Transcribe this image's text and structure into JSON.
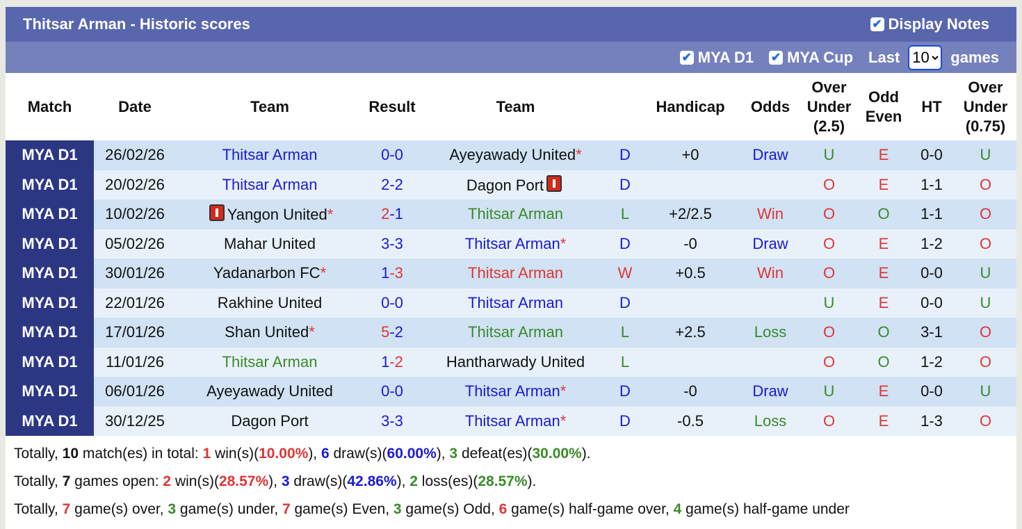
{
  "title": "Thitsar Arman - Historic scores",
  "display_notes": {
    "label": "Display Notes",
    "checked": true
  },
  "filters": [
    {
      "label": "MYA D1",
      "checked": true
    },
    {
      "label": "MYA Cup",
      "checked": true
    }
  ],
  "last_label": "Last",
  "last_value": "10",
  "games_label": "games",
  "headers": [
    "Match",
    "Date",
    "Team",
    "Result",
    "Team",
    "",
    "Handicap",
    "Odds",
    "Over Under (2.5)",
    "Odd Even",
    "HT",
    "Over Under (0.75)"
  ],
  "colors": {
    "blue": "#1a1ad6",
    "red": "#e03535",
    "green": "#3a8a2a",
    "match_bg": "#2c3784",
    "title_bg": "#5866ad"
  },
  "rows": [
    {
      "match": "MYA D1",
      "date": "26/02/26",
      "home": "Thitsar Arman",
      "home_color": "blue",
      "home_star": false,
      "home_card": false,
      "score_home": "0",
      "score_away": "0",
      "sh_color": "blue",
      "sa_color": "blue",
      "away": "Ayeyawady United",
      "away_color": "black",
      "away_star": true,
      "away_card": false,
      "wdl": "D",
      "wdl_color": "blue",
      "handicap": "+0",
      "odds": "Draw",
      "odds_color": "blue",
      "ou": "U",
      "ou_color": "green",
      "oe": "E",
      "oe_color": "red",
      "ht": "0-0",
      "ou2": "U",
      "ou2_color": "green"
    },
    {
      "match": "MYA D1",
      "date": "20/02/26",
      "home": "Thitsar Arman",
      "home_color": "blue",
      "home_star": false,
      "home_card": false,
      "score_home": "2",
      "score_away": "2",
      "sh_color": "blue",
      "sa_color": "blue",
      "away": "Dagon Port",
      "away_color": "black",
      "away_star": false,
      "away_card": true,
      "wdl": "D",
      "wdl_color": "blue",
      "handicap": "",
      "odds": "",
      "odds_color": "blue",
      "ou": "O",
      "ou_color": "red",
      "oe": "E",
      "oe_color": "red",
      "ht": "1-1",
      "ou2": "O",
      "ou2_color": "red"
    },
    {
      "match": "MYA D1",
      "date": "10/02/26",
      "home": "Yangon United",
      "home_color": "black",
      "home_star": true,
      "home_card": true,
      "score_home": "2",
      "score_away": "1",
      "sh_color": "red",
      "sa_color": "blue",
      "away": "Thitsar Arman",
      "away_color": "green",
      "away_star": false,
      "away_card": false,
      "wdl": "L",
      "wdl_color": "green",
      "handicap": "+2/2.5",
      "odds": "Win",
      "odds_color": "red",
      "ou": "O",
      "ou_color": "red",
      "oe": "O",
      "oe_color": "green",
      "ht": "1-1",
      "ou2": "O",
      "ou2_color": "red"
    },
    {
      "match": "MYA D1",
      "date": "05/02/26",
      "home": "Mahar United",
      "home_color": "black",
      "home_star": false,
      "home_card": false,
      "score_home": "3",
      "score_away": "3",
      "sh_color": "blue",
      "sa_color": "blue",
      "away": "Thitsar Arman",
      "away_color": "blue",
      "away_star": true,
      "away_card": false,
      "wdl": "D",
      "wdl_color": "blue",
      "handicap": "-0",
      "odds": "Draw",
      "odds_color": "blue",
      "ou": "O",
      "ou_color": "red",
      "oe": "E",
      "oe_color": "red",
      "ht": "1-2",
      "ou2": "O",
      "ou2_color": "red"
    },
    {
      "match": "MYA D1",
      "date": "30/01/26",
      "home": "Yadanarbon FC",
      "home_color": "black",
      "home_star": true,
      "home_card": false,
      "score_home": "1",
      "score_away": "3",
      "sh_color": "blue",
      "sa_color": "red",
      "away": "Thitsar Arman",
      "away_color": "red",
      "away_star": false,
      "away_card": false,
      "wdl": "W",
      "wdl_color": "red",
      "handicap": "+0.5",
      "odds": "Win",
      "odds_color": "red",
      "ou": "O",
      "ou_color": "red",
      "oe": "E",
      "oe_color": "red",
      "ht": "0-0",
      "ou2": "U",
      "ou2_color": "green"
    },
    {
      "match": "MYA D1",
      "date": "22/01/26",
      "home": "Rakhine United",
      "home_color": "black",
      "home_star": false,
      "home_card": false,
      "score_home": "0",
      "score_away": "0",
      "sh_color": "blue",
      "sa_color": "blue",
      "away": "Thitsar Arman",
      "away_color": "blue",
      "away_star": false,
      "away_card": false,
      "wdl": "D",
      "wdl_color": "blue",
      "handicap": "",
      "odds": "",
      "odds_color": "blue",
      "ou": "U",
      "ou_color": "green",
      "oe": "E",
      "oe_color": "red",
      "ht": "0-0",
      "ou2": "U",
      "ou2_color": "green"
    },
    {
      "match": "MYA D1",
      "date": "17/01/26",
      "home": "Shan United",
      "home_color": "black",
      "home_star": true,
      "home_card": false,
      "score_home": "5",
      "score_away": "2",
      "sh_color": "red",
      "sa_color": "blue",
      "away": "Thitsar Arman",
      "away_color": "green",
      "away_star": false,
      "away_card": false,
      "wdl": "L",
      "wdl_color": "green",
      "handicap": "+2.5",
      "odds": "Loss",
      "odds_color": "green",
      "ou": "O",
      "ou_color": "red",
      "oe": "O",
      "oe_color": "green",
      "ht": "3-1",
      "ou2": "O",
      "ou2_color": "red"
    },
    {
      "match": "MYA D1",
      "date": "11/01/26",
      "home": "Thitsar Arman",
      "home_color": "green",
      "home_star": false,
      "home_card": false,
      "score_home": "1",
      "score_away": "2",
      "sh_color": "blue",
      "sa_color": "red",
      "away": "Hantharwady United",
      "away_color": "black",
      "away_star": false,
      "away_card": false,
      "wdl": "L",
      "wdl_color": "green",
      "handicap": "",
      "odds": "",
      "odds_color": "blue",
      "ou": "O",
      "ou_color": "red",
      "oe": "O",
      "oe_color": "green",
      "ht": "1-2",
      "ou2": "O",
      "ou2_color": "red"
    },
    {
      "match": "MYA D1",
      "date": "06/01/26",
      "home": "Ayeyawady United",
      "home_color": "black",
      "home_star": false,
      "home_card": false,
      "score_home": "0",
      "score_away": "0",
      "sh_color": "blue",
      "sa_color": "blue",
      "away": "Thitsar Arman",
      "away_color": "blue",
      "away_star": true,
      "away_card": false,
      "wdl": "D",
      "wdl_color": "blue",
      "handicap": "-0",
      "odds": "Draw",
      "odds_color": "blue",
      "ou": "U",
      "ou_color": "green",
      "oe": "E",
      "oe_color": "red",
      "ht": "0-0",
      "ou2": "U",
      "ou2_color": "green"
    },
    {
      "match": "MYA D1",
      "date": "30/12/25",
      "home": "Dagon Port",
      "home_color": "black",
      "home_star": false,
      "home_card": false,
      "score_home": "3",
      "score_away": "3",
      "sh_color": "blue",
      "sa_color": "blue",
      "away": "Thitsar Arman",
      "away_color": "blue",
      "away_star": true,
      "away_card": false,
      "wdl": "D",
      "wdl_color": "blue",
      "handicap": "-0.5",
      "odds": "Loss",
      "odds_color": "green",
      "ou": "O",
      "ou_color": "red",
      "oe": "E",
      "oe_color": "red",
      "ht": "1-3",
      "ou2": "O",
      "ou2_color": "red"
    }
  ],
  "summary": [
    [
      {
        "t": "Totally, "
      },
      {
        "t": "10",
        "c": "black",
        "b": true
      },
      {
        "t": " match(es) in total: "
      },
      {
        "t": "1",
        "c": "red",
        "b": true
      },
      {
        "t": " win(s)("
      },
      {
        "t": "10.00%",
        "c": "red",
        "b": true
      },
      {
        "t": "), "
      },
      {
        "t": "6",
        "c": "blue",
        "b": true
      },
      {
        "t": " draw(s)("
      },
      {
        "t": "60.00%",
        "c": "blue",
        "b": true
      },
      {
        "t": "), "
      },
      {
        "t": "3",
        "c": "green",
        "b": true
      },
      {
        "t": " defeat(es)("
      },
      {
        "t": "30.00%",
        "c": "green",
        "b": true
      },
      {
        "t": ")."
      }
    ],
    [
      {
        "t": "Totally, "
      },
      {
        "t": "7",
        "c": "black",
        "b": true
      },
      {
        "t": " games open: "
      },
      {
        "t": "2",
        "c": "red",
        "b": true
      },
      {
        "t": " win(s)("
      },
      {
        "t": "28.57%",
        "c": "red",
        "b": true
      },
      {
        "t": "), "
      },
      {
        "t": "3",
        "c": "blue",
        "b": true
      },
      {
        "t": " draw(s)("
      },
      {
        "t": "42.86%",
        "c": "blue",
        "b": true
      },
      {
        "t": "), "
      },
      {
        "t": "2",
        "c": "green",
        "b": true
      },
      {
        "t": " loss(es)("
      },
      {
        "t": "28.57%",
        "c": "green",
        "b": true
      },
      {
        "t": ")."
      }
    ],
    [
      {
        "t": "Totally, "
      },
      {
        "t": "7",
        "c": "red",
        "b": true
      },
      {
        "t": " game(s) over, "
      },
      {
        "t": "3",
        "c": "green",
        "b": true
      },
      {
        "t": " game(s) under, "
      },
      {
        "t": "7",
        "c": "red",
        "b": true
      },
      {
        "t": " game(s) Even, "
      },
      {
        "t": "3",
        "c": "green",
        "b": true
      },
      {
        "t": " game(s) Odd, "
      },
      {
        "t": "6",
        "c": "red",
        "b": true
      },
      {
        "t": " game(s) half-game over, "
      },
      {
        "t": "4",
        "c": "green",
        "b": true
      },
      {
        "t": " game(s) half-game under"
      }
    ]
  ]
}
